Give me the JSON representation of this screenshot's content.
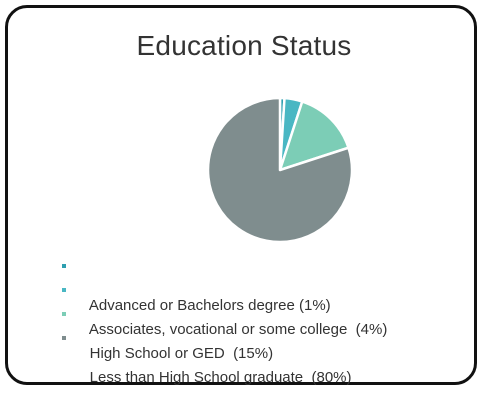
{
  "chart_data": {
    "type": "pie",
    "title": "Education Status",
    "slices": [
      {
        "label": "Advanced or Bachelors degree (1%)",
        "value": 1,
        "color": "#2e9fb0"
      },
      {
        "label": "Associates, vocational or some college  (4%)",
        "value": 4,
        "color": "#49b7c3"
      },
      {
        "label": "High School or GED  (15%)",
        "value": 15,
        "color": "#7ccdb6"
      },
      {
        "label": "Less than High School graduate  (80%)",
        "value": 80,
        "color": "#7f8d8e"
      }
    ],
    "legend_position": "bottom"
  }
}
